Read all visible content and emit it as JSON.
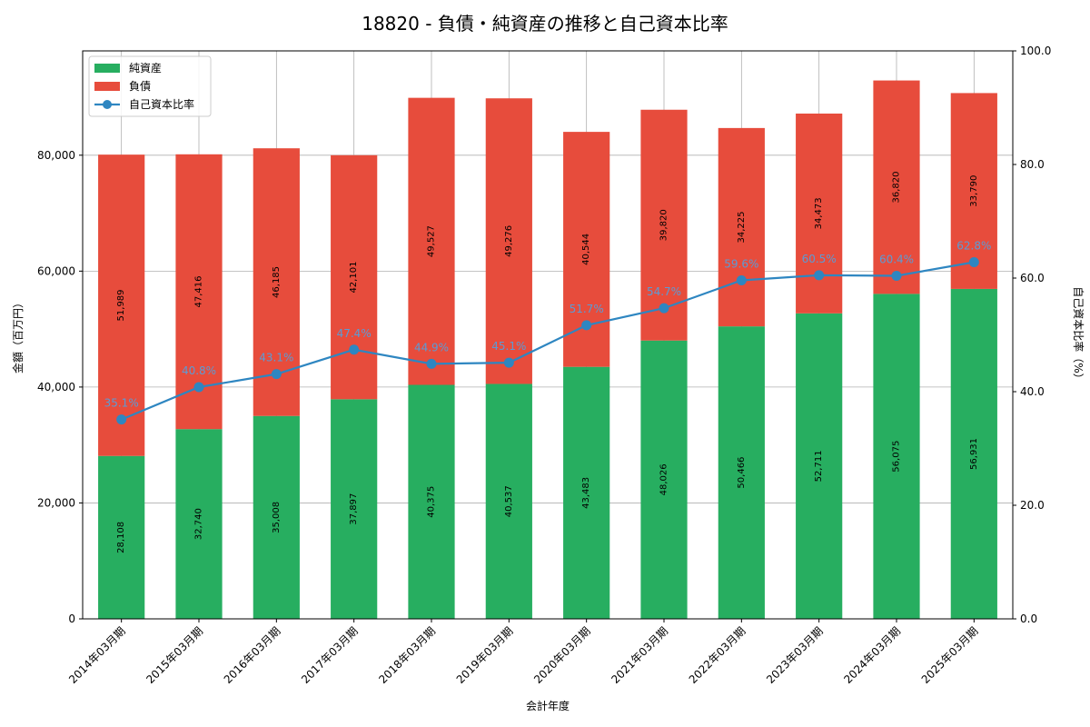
{
  "chart_data": {
    "type": "bar",
    "title": "18820 - 負債・純資産の推移と自己資本比率",
    "xlabel": "会計年度",
    "ylabel": "金額（百万円）",
    "y2label": "自己資本比率（%）",
    "ylim": [
      0,
      98000
    ],
    "y2lim": [
      0,
      100
    ],
    "y_ticks": [
      0,
      20000,
      40000,
      60000,
      80000
    ],
    "y_tick_labels": [
      "0",
      "20,000",
      "40,000",
      "60,000",
      "80,000"
    ],
    "y2_ticks": [
      0,
      20,
      40,
      60,
      80,
      100
    ],
    "y2_tick_labels": [
      "0.0",
      "20.0",
      "40.0",
      "60.0",
      "80.0",
      "100.0"
    ],
    "grid": true,
    "stacked": true,
    "legend_position": "top-left",
    "categories": [
      "2014年03月期",
      "2015年03月期",
      "2016年03月期",
      "2017年03月期",
      "2018年03月期",
      "2019年03月期",
      "2020年03月期",
      "2021年03月期",
      "2022年03月期",
      "2023年03月期",
      "2024年03月期",
      "2025年03月期"
    ],
    "series": [
      {
        "name": "純資産",
        "type": "bar",
        "color": "#27ae60",
        "values": [
          28108,
          32740,
          35008,
          37897,
          40375,
          40537,
          43483,
          48026,
          50466,
          52711,
          56075,
          56931
        ],
        "labels": [
          "28,108",
          "32,740",
          "35,008",
          "37,897",
          "40,375",
          "40,537",
          "43,483",
          "48,026",
          "50,466",
          "52,711",
          "56,075",
          "56,931"
        ]
      },
      {
        "name": "負債",
        "type": "bar",
        "color": "#e74c3c",
        "values": [
          51989,
          47416,
          46185,
          42101,
          49527,
          49276,
          40544,
          39820,
          34225,
          34473,
          36820,
          33790
        ],
        "labels": [
          "51,989",
          "47,416",
          "46,185",
          "42,101",
          "49,527",
          "49,276",
          "40,544",
          "39,820",
          "34,225",
          "34,473",
          "36,820",
          "33,790"
        ]
      },
      {
        "name": "自己資本比率",
        "type": "line",
        "axis": "right",
        "color": "#2e86c1",
        "values": [
          35.1,
          40.8,
          43.1,
          47.4,
          44.9,
          45.1,
          51.7,
          54.7,
          59.6,
          60.5,
          60.4,
          62.8
        ],
        "labels": [
          "35.1%",
          "40.8%",
          "43.1%",
          "47.4%",
          "44.9%",
          "45.1%",
          "51.7%",
          "54.7%",
          "59.6%",
          "60.5%",
          "60.4%",
          "62.8%"
        ]
      }
    ]
  }
}
